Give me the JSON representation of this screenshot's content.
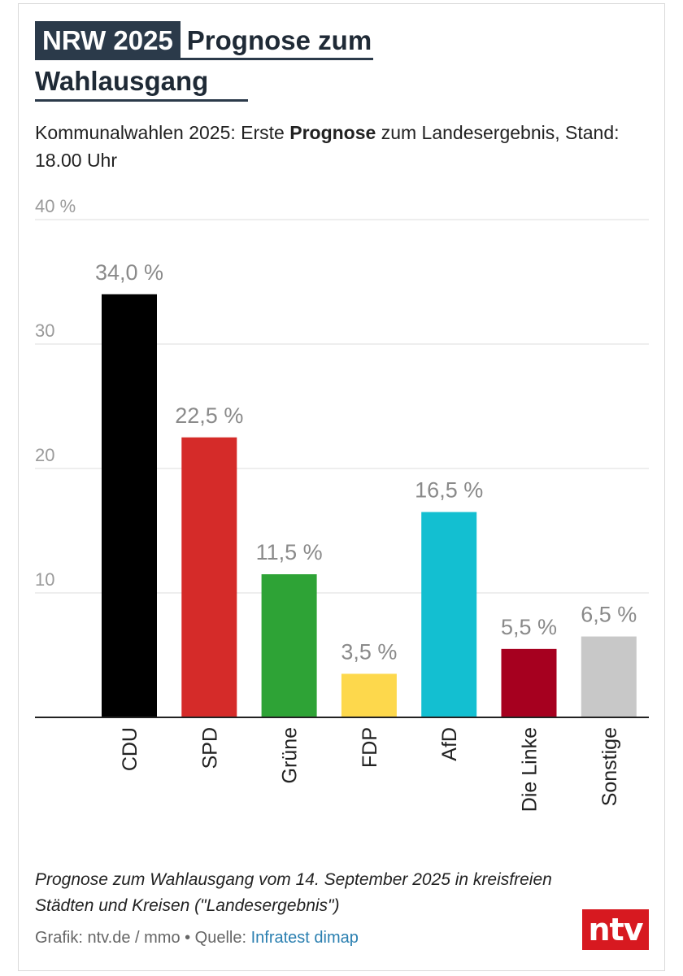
{
  "header": {
    "tag": "NRW 2025",
    "title_part1": "Prognose zum",
    "title_part2": "Wahlausgang"
  },
  "subtitle": {
    "pre": "Kommunalwahlen 2025: Erste ",
    "bold": "Prognose",
    "post": " zum Landesergebnis, Stand: 18.00 Uhr"
  },
  "chart_data": {
    "type": "bar",
    "categories": [
      "CDU",
      "SPD",
      "Grüne",
      "FDP",
      "AfD",
      "Die Linke",
      "Sonstige"
    ],
    "values": [
      34.0,
      22.5,
      11.5,
      3.5,
      16.5,
      5.5,
      6.5
    ],
    "value_labels": [
      "34,0 %",
      "22,5 %",
      "11,5 %",
      "3,5 %",
      "16,5 %",
      "5,5 %",
      "6,5 %"
    ],
    "colors": [
      "#000000",
      "#d52b29",
      "#2ea336",
      "#fdd84c",
      "#13bfd1",
      "#a6001f",
      "#c8c8c8"
    ],
    "ylim": [
      0,
      40
    ],
    "yticks": [
      10,
      20,
      30,
      40
    ],
    "ytick_labels": [
      "10",
      "20",
      "30",
      "40 %"
    ],
    "grid": true,
    "xlabel": "",
    "ylabel": ""
  },
  "footer": {
    "note": "Prognose zum Wahlausgang vom 14. September 2025 in kreisfreien Städten und Kreisen (\"Landesergebnis\")",
    "credit_text": "Grafik: ntv.de / mmo • Quelle: ",
    "source": "Infratest dimap",
    "logo": "ntv",
    "logo_color": "#d71920"
  }
}
